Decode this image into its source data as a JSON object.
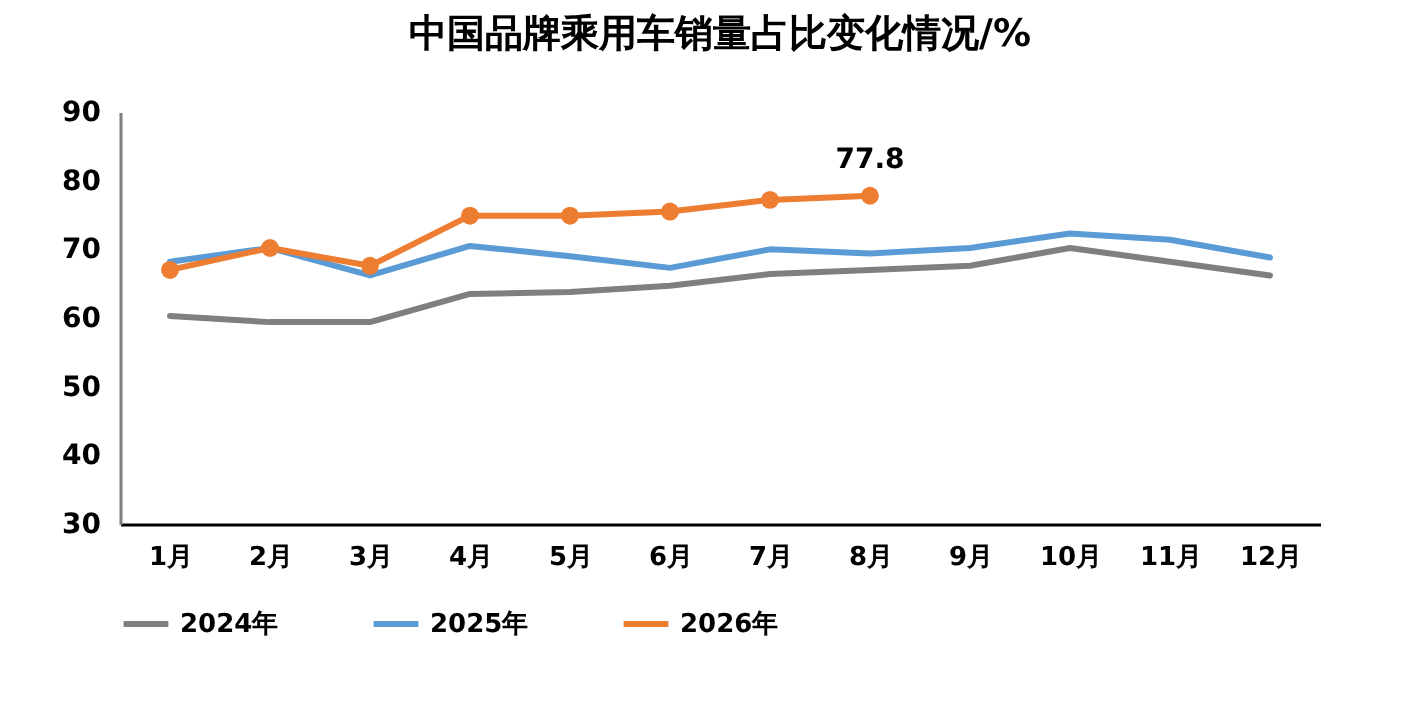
{
  "chart_data": {
    "type": "line",
    "title": "中国品牌乘用车销量占比变化情况/%",
    "categories": [
      "1月",
      "2月",
      "3月",
      "4月",
      "5月",
      "6月",
      "7月",
      "8月",
      "9月",
      "10月",
      "11月",
      "12月"
    ],
    "series": [
      {
        "name": "2024年",
        "color": "#7f7f7f",
        "marker": "none",
        "values": [
          60.3,
          59.4,
          59.4,
          63.5,
          63.8,
          64.7,
          66.4,
          67,
          67.6,
          70.2,
          68.2,
          66.2
        ]
      },
      {
        "name": "2025年",
        "color": "#5b9bd5",
        "marker": "none",
        "values": [
          68.2,
          70.2,
          66.2,
          70.5,
          69,
          67.3,
          70,
          69.4,
          70.2,
          72.3,
          71.4,
          68.8
        ]
      },
      {
        "name": "2026年",
        "color": "#ed7d31",
        "marker": "circle",
        "values": [
          67,
          70.2,
          67.6,
          74.9,
          74.9,
          75.5,
          77.2,
          77.8,
          null,
          null,
          null,
          null
        ],
        "value_labels": [
          null,
          null,
          null,
          null,
          null,
          null,
          null,
          "77.8",
          null,
          null,
          null,
          null
        ]
      }
    ],
    "ylim": [
      30,
      90
    ],
    "yticks": [
      30,
      40,
      50,
      60,
      70,
      80,
      90
    ],
    "grid": false,
    "legend": "bottom",
    "line_style": "solid"
  }
}
